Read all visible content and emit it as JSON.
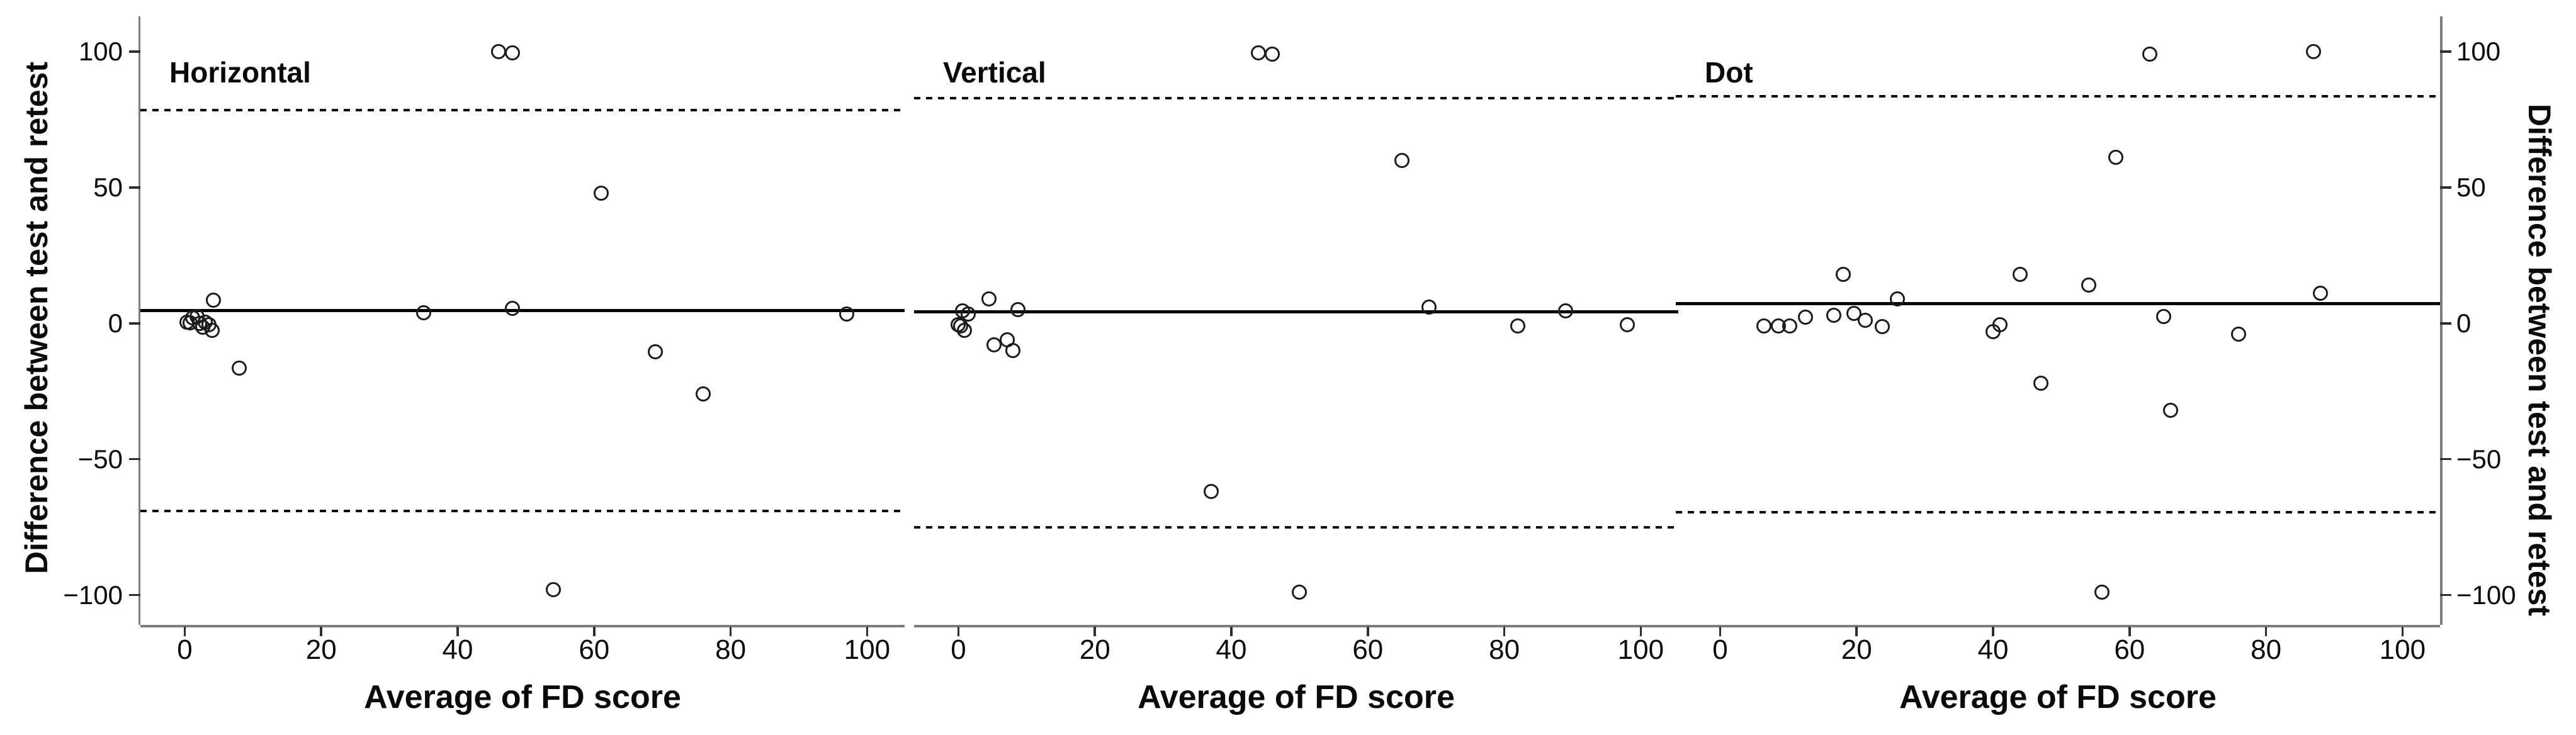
{
  "figure": {
    "left_axis": {
      "label": "Difference between test and retest",
      "ticks": [
        100,
        50,
        0,
        -50,
        -100
      ]
    },
    "right_axis": {
      "label": "Difference between test and retest",
      "ticks": [
        100,
        50,
        0,
        -50,
        -100
      ]
    },
    "x_axis": {
      "label": "Average of FD score",
      "ticks": [
        0,
        20,
        40,
        60,
        80,
        100
      ]
    }
  },
  "style": {
    "ink": "#0a0a0a",
    "axis_gray": "#7d7d7d",
    "background": "#ffffff"
  },
  "chart_data": [
    {
      "type": "scatter",
      "title": "Horizontal",
      "xlabel": "Average of FD score",
      "ylabel": "Difference between test and retest",
      "xlim": [
        -6.5,
        105.5
      ],
      "ylim": [
        -111,
        119
      ],
      "x_ticks": [
        0,
        20,
        40,
        60,
        80,
        100
      ],
      "y_ticks": [
        100,
        50,
        0,
        -50,
        -100
      ],
      "grid": false,
      "mean_diff": 4.7,
      "upper_loa": 78.4,
      "lower_loa": -69,
      "points": [
        [
          0.3,
          0.5
        ],
        [
          0.8,
          0.2
        ],
        [
          1.2,
          2
        ],
        [
          1.8,
          2.5
        ],
        [
          2.2,
          0
        ],
        [
          2.6,
          -1.5
        ],
        [
          3,
          0.3
        ],
        [
          3.6,
          -0.5
        ],
        [
          4,
          -2.5
        ],
        [
          4.2,
          8.5
        ],
        [
          8,
          -16.5
        ],
        [
          35,
          4
        ],
        [
          46,
          100
        ],
        [
          48,
          99.5
        ],
        [
          48,
          5.5
        ],
        [
          54,
          -98
        ],
        [
          61,
          48
        ],
        [
          69,
          -10.5
        ],
        [
          76,
          -26
        ],
        [
          97,
          3.5
        ]
      ]
    },
    {
      "type": "scatter",
      "title": "Vertical",
      "xlabel": "Average of FD score",
      "ylabel": "Difference between test and retest",
      "xlim": [
        -6.5,
        105.5
      ],
      "ylim": [
        -111,
        119
      ],
      "x_ticks": [
        0,
        20,
        40,
        60,
        80,
        100
      ],
      "y_ticks": [
        100,
        50,
        0,
        -50,
        -100
      ],
      "grid": false,
      "mean_diff": 4.2,
      "upper_loa": 82.8,
      "lower_loa": -75,
      "points": [
        [
          0,
          -0.5
        ],
        [
          0.3,
          -1
        ],
        [
          0.9,
          -2.5
        ],
        [
          0.6,
          4.5
        ],
        [
          1.4,
          3.5
        ],
        [
          4.5,
          9
        ],
        [
          8.7,
          5
        ],
        [
          5.2,
          -8
        ],
        [
          7.2,
          -6
        ],
        [
          8,
          -10
        ],
        [
          37,
          -62
        ],
        [
          44,
          99.5
        ],
        [
          46,
          99
        ],
        [
          50,
          -99
        ],
        [
          65,
          60
        ],
        [
          69,
          6
        ],
        [
          82,
          -1
        ],
        [
          89,
          4.5
        ],
        [
          98,
          -0.5
        ]
      ]
    },
    {
      "type": "scatter",
      "title": "Dot",
      "xlabel": "Average of FD score",
      "ylabel": "Difference between test and retest",
      "xlim": [
        -6.5,
        105.5
      ],
      "ylim": [
        -111,
        119
      ],
      "x_ticks": [
        0,
        20,
        40,
        60,
        80,
        100
      ],
      "y_ticks": [
        100,
        50,
        0,
        -50,
        -100
      ],
      "grid": false,
      "mean_diff": 7.2,
      "upper_loa": 83.5,
      "lower_loa": -69.5,
      "points": [
        [
          6.4,
          -1
        ],
        [
          8.5,
          -1
        ],
        [
          10.2,
          -1
        ],
        [
          12.5,
          2.3
        ],
        [
          16.7,
          3
        ],
        [
          18,
          18
        ],
        [
          19.6,
          3.7
        ],
        [
          21.3,
          1.2
        ],
        [
          23.8,
          -1.2
        ],
        [
          26,
          9
        ],
        [
          40,
          -3
        ],
        [
          41,
          -0.5
        ],
        [
          44,
          18
        ],
        [
          47,
          -22
        ],
        [
          54,
          14
        ],
        [
          56,
          -99
        ],
        [
          58,
          61
        ],
        [
          63,
          99
        ],
        [
          65,
          2.5
        ],
        [
          66,
          -32
        ],
        [
          76,
          -4
        ],
        [
          87,
          100
        ],
        [
          88,
          11
        ]
      ]
    }
  ]
}
